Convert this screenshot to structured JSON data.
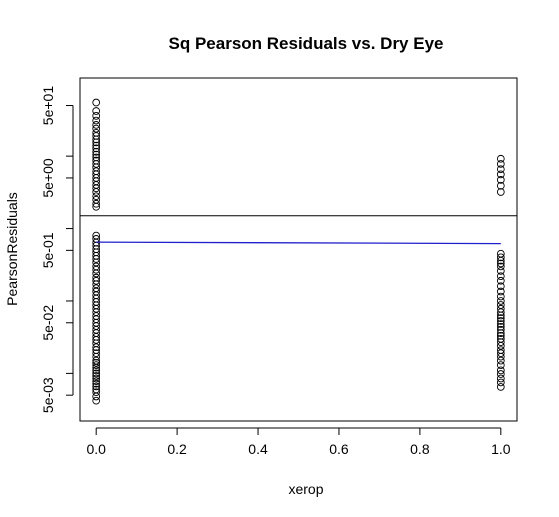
{
  "chart_data": {
    "type": "scatter",
    "title": "Sq Pearson Residuals vs. Dry Eye",
    "xlabel": "xerop",
    "ylabel": "PearsonResiduals",
    "xlim": [
      -0.04,
      1.04
    ],
    "ylim": [
      0.0022,
      120
    ],
    "y_scale": "log",
    "x_ticks": [
      {
        "value": 0.0,
        "label": "0.0"
      },
      {
        "value": 0.2,
        "label": "0.2"
      },
      {
        "value": 0.4,
        "label": "0.4"
      },
      {
        "value": 0.6,
        "label": "0.6"
      },
      {
        "value": 0.8,
        "label": "0.8"
      },
      {
        "value": 1.0,
        "label": "1.0"
      }
    ],
    "y_ticks": [
      {
        "value": 0.005,
        "label": "5e-03"
      },
      {
        "value": 0.05,
        "label": "5e-02"
      },
      {
        "value": 0.5,
        "label": "5e-01"
      },
      {
        "value": 5,
        "label": "5e+00"
      },
      {
        "value": 50,
        "label": "5e+01"
      }
    ],
    "y_minor_ticks": [
      0.01,
      0.1,
      1,
      10
    ],
    "hline": {
      "y": 1.5,
      "color": "#000000"
    },
    "fit_line": {
      "x": [
        0,
        1
      ],
      "y": [
        0.65,
        0.62
      ],
      "color": "#1f1fcc"
    },
    "series": [
      {
        "x": 0,
        "y": [
          0.0042,
          0.0048,
          0.0055,
          0.006,
          0.0066,
          0.0072,
          0.0078,
          0.0085,
          0.0092,
          0.01,
          0.011,
          0.012,
          0.013,
          0.014,
          0.015,
          0.017,
          0.019,
          0.021,
          0.023,
          0.026,
          0.029,
          0.032,
          0.036,
          0.04,
          0.045,
          0.05,
          0.056,
          0.062,
          0.07,
          0.078,
          0.087,
          0.097,
          0.108,
          0.12,
          0.135,
          0.15,
          0.17,
          0.19,
          0.21,
          0.24,
          0.27,
          0.3,
          0.34,
          0.38,
          0.42,
          0.47,
          0.52,
          0.58,
          0.64,
          0.72,
          0.8,
          2.0,
          2.2,
          2.5,
          2.8,
          3.2,
          3.6,
          4.0,
          4.5,
          5.0,
          5.6,
          6.2,
          7.0,
          7.8,
          8.7,
          9.6,
          10.5,
          11.5,
          12.8,
          14.0,
          15.5,
          17.0,
          19.0,
          21.0,
          24.0,
          27.0,
          31.0,
          36.0,
          42.0,
          55.0
        ]
      },
      {
        "x": 1,
        "y": [
          0.0065,
          0.0075,
          0.0085,
          0.0098,
          0.011,
          0.013,
          0.015,
          0.017,
          0.019,
          0.021,
          0.024,
          0.027,
          0.03,
          0.033,
          0.036,
          0.04,
          0.044,
          0.048,
          0.053,
          0.058,
          0.063,
          0.07,
          0.078,
          0.088,
          0.1,
          0.115,
          0.135,
          0.16,
          0.19,
          0.22,
          0.26,
          0.3,
          0.33,
          0.36,
          0.4,
          0.45,
          3.2,
          3.9,
          4.7,
          5.6,
          6.6,
          7.8,
          9.2
        ]
      }
    ]
  }
}
